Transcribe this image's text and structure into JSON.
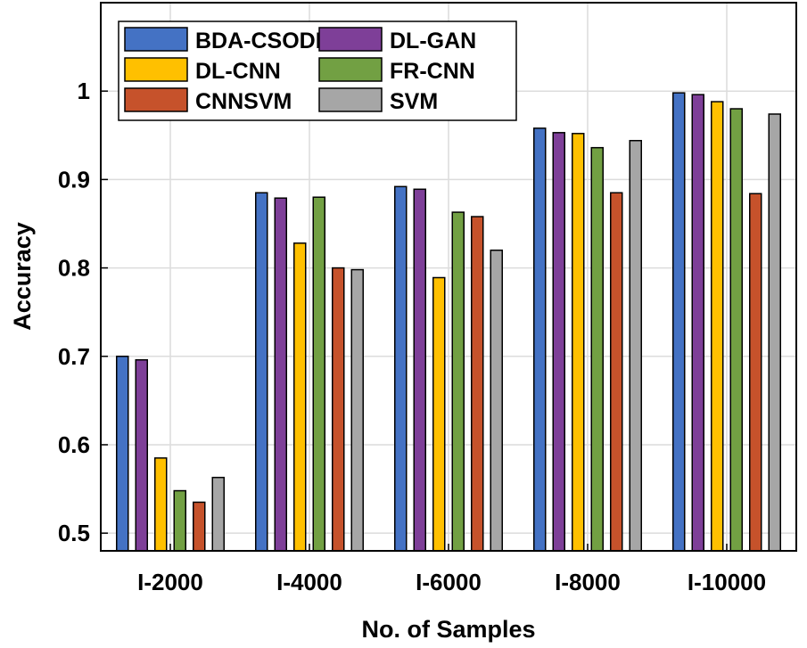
{
  "chart_data": {
    "type": "bar",
    "title": "",
    "xlabel": "No. of Samples",
    "ylabel": "Accuracy",
    "ylim": [
      0.48,
      1.1
    ],
    "yticks": [
      0.5,
      0.6,
      0.7,
      0.8,
      0.9,
      1
    ],
    "ytick_labels": [
      "0.5",
      "0.6",
      "0.7",
      "0.8",
      "0.9",
      "1"
    ],
    "grid": true,
    "legend_position": "top-left",
    "categories": [
      "I-2000",
      "I-4000",
      "I-6000",
      "I-8000",
      "I-10000"
    ],
    "series": [
      {
        "name": "BDA-CSODL",
        "color": "#4472C4",
        "values": [
          0.7,
          0.885,
          0.892,
          0.958,
          0.998
        ]
      },
      {
        "name": "DL-GAN",
        "color": "#7E3F98",
        "values": [
          0.696,
          0.879,
          0.889,
          0.953,
          0.996
        ]
      },
      {
        "name": "DL-CNN",
        "color": "#FFC000",
        "values": [
          0.585,
          0.828,
          0.789,
          0.952,
          0.988
        ]
      },
      {
        "name": "FR-CNN",
        "color": "#72A043",
        "values": [
          0.548,
          0.88,
          0.863,
          0.936,
          0.98
        ]
      },
      {
        "name": "CNNSVM",
        "color": "#C6522B",
        "values": [
          0.535,
          0.8,
          0.858,
          0.885,
          0.884
        ]
      },
      {
        "name": "SVM",
        "color": "#A6A6A6",
        "values": [
          0.563,
          0.798,
          0.82,
          0.944,
          0.974
        ]
      }
    ]
  }
}
